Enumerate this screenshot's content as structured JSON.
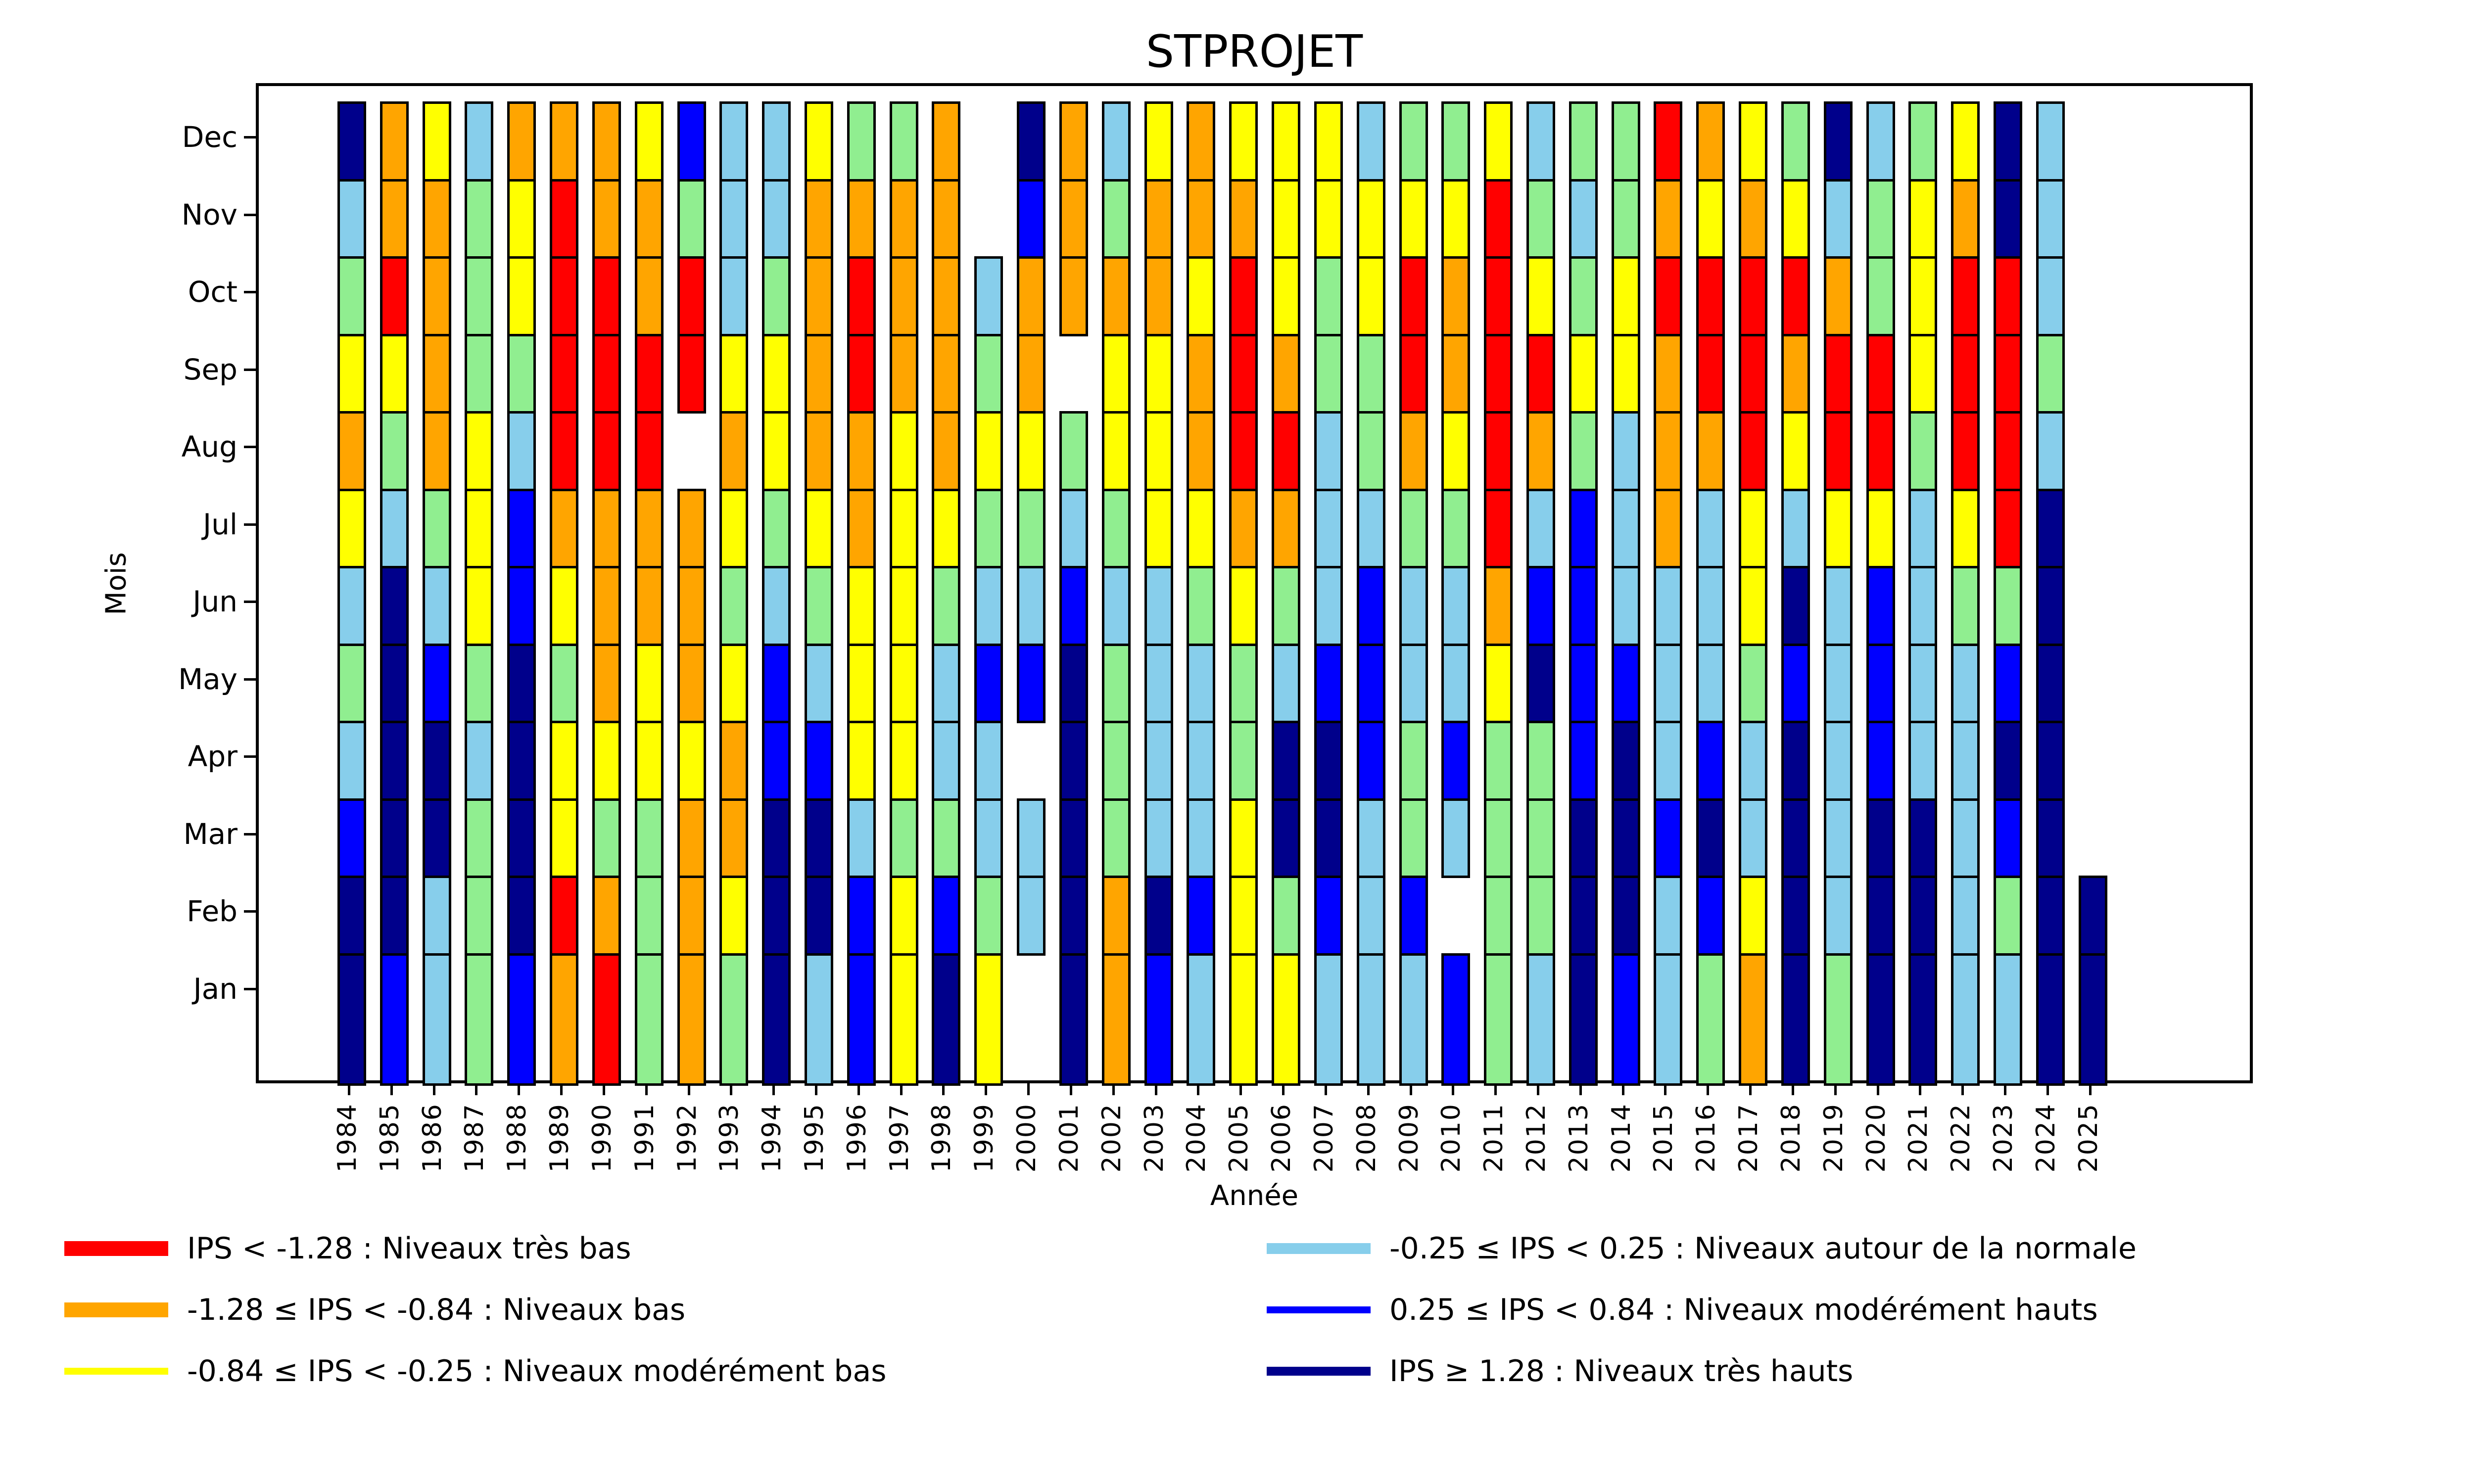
{
  "chart_data": {
    "type": "heatmap",
    "title": "STPROJET",
    "xlabel": "Année",
    "ylabel": "Mois",
    "years": [
      "1984",
      "1985",
      "1986",
      "1987",
      "1988",
      "1989",
      "1990",
      "1991",
      "1992",
      "1993",
      "1994",
      "1995",
      "1996",
      "1997",
      "1998",
      "1999",
      "2000",
      "2001",
      "2002",
      "2003",
      "2004",
      "2005",
      "2006",
      "2007",
      "2008",
      "2009",
      "2010",
      "2011",
      "2012",
      "2013",
      "2014",
      "2015",
      "2016",
      "2017",
      "2018",
      "2019",
      "2020",
      "2021",
      "2022",
      "2023",
      "2024",
      "2025"
    ],
    "months_order_data": [
      "Jan",
      "Feb",
      "Mar",
      "Apr",
      "May",
      "Jun",
      "Jul",
      "Aug",
      "Sep",
      "Oct",
      "Nov",
      "Dec"
    ],
    "months_display_top_to_bottom": [
      "Dec",
      "Nov",
      "Oct",
      "Sep",
      "Aug",
      "Jul",
      "Jun",
      "May",
      "Apr",
      "Mar",
      "Feb",
      "Jan"
    ],
    "colors": {
      "R": "#ff0000",
      "O": "#ffa500",
      "Y": "#ffff00",
      "G": "#90ee90",
      "C": "#87ceeb",
      "B": "#0000ff",
      "N": "#00008b"
    },
    "missing_code": "W",
    "grid": {
      "1984": [
        "N",
        "N",
        "B",
        "C",
        "G",
        "C",
        "Y",
        "O",
        "Y",
        "G",
        "C",
        "N"
      ],
      "1985": [
        "B",
        "N",
        "N",
        "N",
        "N",
        "N",
        "C",
        "G",
        "Y",
        "R",
        "O",
        "O"
      ],
      "1986": [
        "C",
        "C",
        "N",
        "N",
        "B",
        "C",
        "G",
        "O",
        "O",
        "O",
        "O",
        "Y"
      ],
      "1987": [
        "G",
        "G",
        "G",
        "C",
        "G",
        "Y",
        "Y",
        "Y",
        "G",
        "G",
        "G",
        "C"
      ],
      "1988": [
        "B",
        "N",
        "N",
        "N",
        "N",
        "B",
        "B",
        "C",
        "G",
        "Y",
        "Y",
        "O"
      ],
      "1989": [
        "O",
        "R",
        "Y",
        "Y",
        "G",
        "Y",
        "O",
        "R",
        "R",
        "R",
        "R",
        "O"
      ],
      "1990": [
        "R",
        "O",
        "G",
        "Y",
        "O",
        "O",
        "O",
        "R",
        "R",
        "R",
        "O",
        "O"
      ],
      "1991": [
        "G",
        "G",
        "G",
        "Y",
        "Y",
        "O",
        "O",
        "R",
        "R",
        "O",
        "O",
        "Y"
      ],
      "1992": [
        "O",
        "O",
        "O",
        "Y",
        "O",
        "O",
        "O",
        "W",
        "R",
        "R",
        "G",
        "B"
      ],
      "1993": [
        "G",
        "Y",
        "O",
        "O",
        "Y",
        "G",
        "Y",
        "O",
        "Y",
        "C",
        "C",
        "C"
      ],
      "1994": [
        "N",
        "N",
        "N",
        "B",
        "B",
        "C",
        "G",
        "Y",
        "Y",
        "G",
        "C",
        "C"
      ],
      "1995": [
        "C",
        "N",
        "N",
        "B",
        "C",
        "G",
        "Y",
        "O",
        "O",
        "O",
        "O",
        "Y"
      ],
      "1996": [
        "B",
        "B",
        "C",
        "Y",
        "Y",
        "Y",
        "O",
        "O",
        "R",
        "R",
        "O",
        "G"
      ],
      "1997": [
        "Y",
        "Y",
        "G",
        "Y",
        "Y",
        "Y",
        "Y",
        "Y",
        "O",
        "O",
        "O",
        "G"
      ],
      "1998": [
        "N",
        "B",
        "G",
        "C",
        "C",
        "G",
        "Y",
        "O",
        "O",
        "O",
        "O",
        "O"
      ],
      "1999": [
        "Y",
        "G",
        "C",
        "C",
        "B",
        "C",
        "G",
        "Y",
        "G",
        "C",
        "W",
        "W"
      ],
      "2000": [
        "W",
        "C",
        "C",
        "W",
        "B",
        "C",
        "G",
        "Y",
        "O",
        "O",
        "B",
        "N"
      ],
      "2001": [
        "N",
        "N",
        "N",
        "N",
        "N",
        "B",
        "C",
        "G",
        "W",
        "O",
        "O",
        "O"
      ],
      "2002": [
        "O",
        "O",
        "G",
        "G",
        "G",
        "C",
        "G",
        "Y",
        "Y",
        "O",
        "G",
        "C"
      ],
      "2003": [
        "B",
        "N",
        "C",
        "C",
        "C",
        "C",
        "Y",
        "Y",
        "Y",
        "O",
        "O",
        "Y"
      ],
      "2004": [
        "C",
        "B",
        "C",
        "C",
        "C",
        "G",
        "Y",
        "O",
        "O",
        "Y",
        "O",
        "O"
      ],
      "2005": [
        "Y",
        "Y",
        "Y",
        "G",
        "G",
        "Y",
        "O",
        "R",
        "R",
        "R",
        "O",
        "Y"
      ],
      "2006": [
        "Y",
        "G",
        "N",
        "N",
        "C",
        "G",
        "O",
        "R",
        "O",
        "Y",
        "Y",
        "Y"
      ],
      "2007": [
        "C",
        "B",
        "N",
        "N",
        "B",
        "C",
        "C",
        "C",
        "G",
        "G",
        "Y",
        "Y"
      ],
      "2008": [
        "C",
        "C",
        "C",
        "B",
        "B",
        "B",
        "C",
        "G",
        "G",
        "Y",
        "Y",
        "C"
      ],
      "2009": [
        "C",
        "B",
        "G",
        "G",
        "C",
        "C",
        "G",
        "O",
        "R",
        "R",
        "Y",
        "G"
      ],
      "2010": [
        "B",
        "W",
        "C",
        "B",
        "C",
        "C",
        "G",
        "Y",
        "O",
        "O",
        "Y",
        "G"
      ],
      "2011": [
        "G",
        "G",
        "G",
        "G",
        "Y",
        "O",
        "R",
        "R",
        "R",
        "R",
        "R",
        "Y"
      ],
      "2012": [
        "C",
        "G",
        "G",
        "G",
        "N",
        "B",
        "C",
        "O",
        "R",
        "Y",
        "G",
        "C"
      ],
      "2013": [
        "N",
        "N",
        "N",
        "B",
        "B",
        "B",
        "B",
        "G",
        "Y",
        "G",
        "C",
        "G"
      ],
      "2014": [
        "B",
        "N",
        "N",
        "N",
        "B",
        "C",
        "C",
        "C",
        "Y",
        "Y",
        "G",
        "G"
      ],
      "2015": [
        "C",
        "C",
        "B",
        "C",
        "C",
        "C",
        "O",
        "O",
        "O",
        "R",
        "O",
        "R"
      ],
      "2016": [
        "G",
        "B",
        "N",
        "B",
        "C",
        "C",
        "C",
        "O",
        "R",
        "R",
        "Y",
        "O"
      ],
      "2017": [
        "O",
        "Y",
        "C",
        "C",
        "G",
        "Y",
        "Y",
        "R",
        "R",
        "R",
        "O",
        "Y"
      ],
      "2018": [
        "N",
        "N",
        "N",
        "N",
        "B",
        "N",
        "C",
        "Y",
        "O",
        "R",
        "Y",
        "G"
      ],
      "2019": [
        "G",
        "C",
        "C",
        "C",
        "C",
        "C",
        "Y",
        "R",
        "R",
        "O",
        "C",
        "N"
      ],
      "2020": [
        "N",
        "N",
        "N",
        "B",
        "B",
        "B",
        "Y",
        "R",
        "R",
        "G",
        "G",
        "C"
      ],
      "2021": [
        "N",
        "N",
        "N",
        "C",
        "C",
        "C",
        "C",
        "G",
        "Y",
        "Y",
        "Y",
        "G"
      ],
      "2022": [
        "C",
        "C",
        "C",
        "C",
        "C",
        "G",
        "Y",
        "R",
        "R",
        "R",
        "O",
        "Y"
      ],
      "2023": [
        "C",
        "G",
        "B",
        "N",
        "B",
        "G",
        "R",
        "R",
        "R",
        "R",
        "N",
        "N"
      ],
      "2024": [
        "N",
        "N",
        "N",
        "N",
        "N",
        "N",
        "N",
        "C",
        "G",
        "C",
        "C",
        "C"
      ],
      "2025": [
        "N",
        "N",
        "W",
        "W",
        "W",
        "W",
        "W",
        "W",
        "W",
        "W",
        "W",
        "W"
      ]
    },
    "legend": {
      "columns": [
        {
          "entries": [
            {
              "code": "R",
              "label": "IPS < -1.28 : Niveaux très bas",
              "swatch_h": 30
            },
            {
              "code": "O",
              "label": "-1.28 ≤ IPS < -0.84 : Niveaux bas",
              "swatch_h": 30
            },
            {
              "code": "Y",
              "label": "-0.84 ≤ IPS < -0.25 : Niveaux modérément bas",
              "swatch_h": 14
            }
          ]
        },
        {
          "entries": [
            {
              "code": "C",
              "label": "-0.25 ≤ IPS < 0.25 : Niveaux autour de la normale",
              "swatch_h": 22
            },
            {
              "code": "B",
              "label": "0.25 ≤ IPS < 0.84 : Niveaux modérément hauts",
              "swatch_h": 14
            },
            {
              "code": "N",
              "label": "IPS ≥ 1.28 : Niveaux très hauts",
              "swatch_h": 18
            }
          ]
        }
      ]
    }
  }
}
